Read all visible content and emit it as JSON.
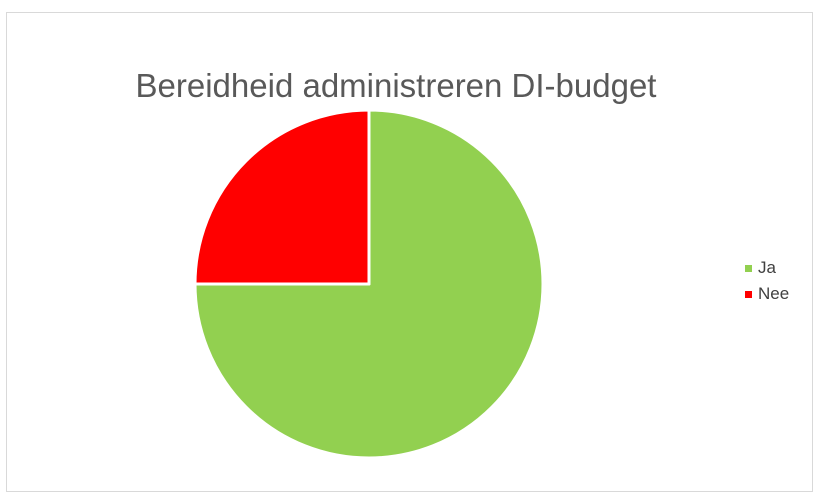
{
  "chart_data": {
    "type": "pie",
    "title": "Bereidheid administreren DI-budget",
    "slices": [
      {
        "label": "Ja",
        "value": 75,
        "color": "#92d050"
      },
      {
        "label": "Nee",
        "value": 25,
        "color": "#ff0000"
      }
    ],
    "legend_position": "right"
  }
}
